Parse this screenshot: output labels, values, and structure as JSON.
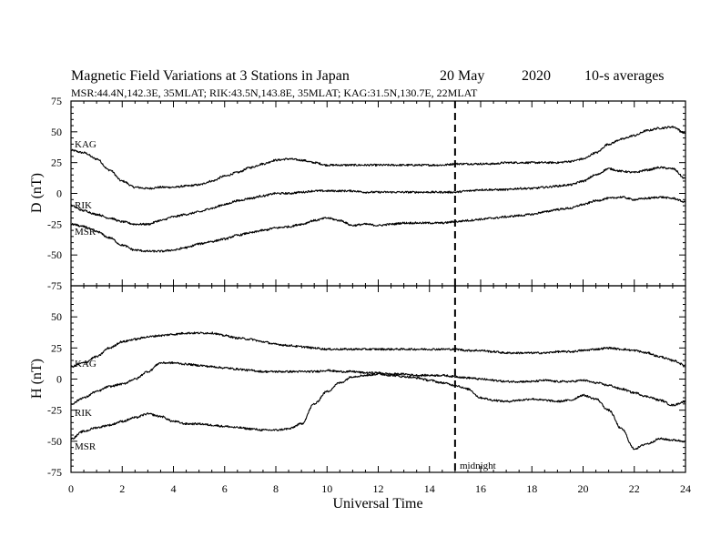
{
  "header": {
    "title_main": "Magnetic Field Variations at 3 Stations in Japan",
    "title_date": "20 May",
    "title_year": "2020",
    "title_avg": "10-s averages",
    "subtitle": "MSR:44.4N,142.3E, 35MLAT;  RIK:43.5N,143.8E, 35MLAT;  KAG:31.5N,130.7E, 22MLAT"
  },
  "annotation": {
    "midnight_label": "midnight",
    "midnight_x": 15
  },
  "chart_data": [
    {
      "type": "line",
      "panel": "D",
      "ylabel": "D (nT)",
      "ylim": [
        -75,
        75
      ],
      "yticks": [
        75,
        50,
        25,
        0,
        -25,
        -50,
        -75
      ],
      "xlim": [
        0,
        24
      ],
      "series": [
        {
          "name": "KAG",
          "color": "#000000",
          "x": [
            0,
            0.5,
            1,
            1.5,
            2,
            2.5,
            3,
            3.5,
            4,
            4.5,
            5,
            5.5,
            6,
            6.5,
            7,
            7.5,
            8,
            8.5,
            9,
            9.5,
            10,
            10.5,
            11,
            11.5,
            12,
            12.5,
            13,
            13.5,
            14,
            14.5,
            15,
            15.5,
            16,
            16.5,
            17,
            17.5,
            18,
            18.5,
            19,
            19.5,
            20,
            20.5,
            21,
            21.5,
            22,
            22.5,
            23,
            23.5,
            24
          ],
          "y": [
            35,
            33,
            28,
            19,
            10,
            5,
            4,
            5,
            5,
            6,
            7,
            10,
            14,
            17,
            21,
            24,
            27,
            28,
            27,
            25,
            23,
            23,
            23,
            23,
            23,
            23,
            23,
            23,
            23,
            23,
            24,
            24,
            24,
            24,
            25,
            25,
            25,
            25,
            25,
            26,
            28,
            33,
            40,
            44,
            47,
            51,
            53,
            54,
            49
          ]
        },
        {
          "name": "RIK",
          "color": "#000000",
          "x": [
            0,
            0.5,
            1,
            1.5,
            2,
            2.5,
            3,
            3.5,
            4,
            4.5,
            5,
            5.5,
            6,
            6.5,
            7,
            7.5,
            8,
            8.5,
            9,
            9.5,
            10,
            10.5,
            11,
            11.5,
            12,
            12.5,
            13,
            13.5,
            14,
            14.5,
            15,
            15.5,
            16,
            16.5,
            17,
            17.5,
            18,
            18.5,
            19,
            19.5,
            20,
            20.5,
            21,
            21.5,
            22,
            22.5,
            23,
            23.5,
            24
          ],
          "y": [
            -10,
            -14,
            -17,
            -20,
            -23,
            -25,
            -25,
            -22,
            -19,
            -17,
            -15,
            -12,
            -9,
            -6,
            -4,
            -2,
            0,
            0,
            1,
            2,
            2,
            2,
            2,
            1,
            1,
            1,
            1,
            1,
            1,
            1,
            1,
            2,
            3,
            3,
            3,
            4,
            4,
            5,
            6,
            7,
            10,
            15,
            20,
            18,
            17,
            19,
            21,
            20,
            12
          ]
        },
        {
          "name": "MSR",
          "color": "#000000",
          "x": [
            0,
            0.5,
            1,
            1.5,
            2,
            2.5,
            3,
            3.5,
            4,
            4.5,
            5,
            5.5,
            6,
            6.5,
            7,
            7.5,
            8,
            8.5,
            9,
            9.5,
            10,
            10.5,
            11,
            11.5,
            12,
            12.5,
            13,
            13.5,
            14,
            14.5,
            15,
            15.5,
            16,
            16.5,
            17,
            17.5,
            18,
            18.5,
            19,
            19.5,
            20,
            20.5,
            21,
            21.5,
            22,
            22.5,
            23,
            23.5,
            24
          ],
          "y": [
            -25,
            -27,
            -31,
            -36,
            -42,
            -46,
            -47,
            -47,
            -46,
            -44,
            -41,
            -39,
            -37,
            -34,
            -32,
            -30,
            -28,
            -27,
            -25,
            -22,
            -20,
            -22,
            -26,
            -25,
            -26,
            -25,
            -24,
            -24,
            -24,
            -24,
            -23,
            -22,
            -21,
            -20,
            -19,
            -18,
            -17,
            -15,
            -13,
            -12,
            -9,
            -6,
            -4,
            -3,
            -5,
            -4,
            -3,
            -4,
            -7
          ]
        }
      ]
    },
    {
      "type": "line",
      "panel": "H",
      "ylabel": "H (nT)",
      "ylim": [
        -75,
        75
      ],
      "yticks": [
        50,
        25,
        0,
        -25,
        -50,
        -75
      ],
      "xlabel": "Universal Time",
      "xlim": [
        0,
        24
      ],
      "xticks": [
        0,
        2,
        4,
        6,
        8,
        10,
        12,
        14,
        16,
        18,
        20,
        22,
        24
      ],
      "series": [
        {
          "name": "KAG",
          "color": "#000000",
          "x": [
            0,
            0.5,
            1,
            1.5,
            2,
            2.5,
            3,
            3.5,
            4,
            4.5,
            5,
            5.5,
            6,
            6.5,
            7,
            7.5,
            8,
            8.5,
            9,
            9.5,
            10,
            10.5,
            11,
            11.5,
            12,
            12.5,
            13,
            13.5,
            14,
            14.5,
            15,
            15.5,
            16,
            16.5,
            17,
            17.5,
            18,
            18.5,
            19,
            19.5,
            20,
            20.5,
            21,
            21.5,
            22,
            22.5,
            23,
            23.5,
            24
          ],
          "y": [
            10,
            13,
            18,
            25,
            30,
            32,
            34,
            35,
            36,
            37,
            37,
            37,
            35,
            33,
            32,
            30,
            28,
            27,
            26,
            25,
            24,
            24,
            24,
            24,
            24,
            24,
            24,
            24,
            24,
            24,
            24,
            23,
            23,
            22,
            21,
            21,
            21,
            21,
            22,
            22,
            23,
            24,
            25,
            24,
            23,
            21,
            18,
            15,
            11
          ]
        },
        {
          "name": "RIK",
          "color": "#000000",
          "x": [
            0,
            0.5,
            1,
            1.5,
            2,
            2.5,
            3,
            3.5,
            4,
            4.5,
            5,
            5.5,
            6,
            6.5,
            7,
            7.5,
            8,
            8.5,
            9,
            9.5,
            10,
            10.5,
            11,
            11.5,
            12,
            12.5,
            13,
            13.5,
            14,
            14.5,
            15,
            15.5,
            16,
            16.5,
            17,
            17.5,
            18,
            18.5,
            19,
            19.5,
            20,
            20.5,
            21,
            21.5,
            22,
            22.5,
            23,
            23.5,
            24
          ],
          "y": [
            -20,
            -15,
            -10,
            -6,
            -4,
            0,
            6,
            13,
            13,
            12,
            11,
            10,
            9,
            8,
            7,
            6,
            6,
            6,
            6,
            6,
            7,
            6,
            6,
            5,
            5,
            4,
            4,
            3,
            3,
            3,
            2,
            1,
            0,
            -1,
            -2,
            -2,
            -2,
            -1,
            -2,
            -2,
            -1,
            -3,
            -5,
            -8,
            -11,
            -14,
            -17,
            -21,
            -18
          ]
        },
        {
          "name": "MSR",
          "color": "#000000",
          "x": [
            0,
            0.5,
            1,
            1.5,
            2,
            2.5,
            3,
            3.5,
            4,
            4.5,
            5,
            5.5,
            6,
            6.5,
            7,
            7.5,
            8,
            8.5,
            9,
            9.5,
            10,
            10.5,
            11,
            11.5,
            12,
            12.5,
            13,
            13.5,
            14,
            14.5,
            15,
            15.5,
            16,
            16.5,
            17,
            17.5,
            18,
            18.5,
            19,
            19.5,
            20,
            20.5,
            21,
            21.5,
            22,
            22.5,
            23,
            23.5,
            24
          ],
          "y": [
            -48,
            -42,
            -39,
            -37,
            -34,
            -31,
            -28,
            -30,
            -34,
            -36,
            -36,
            -37,
            -38,
            -39,
            -40,
            -41,
            -41,
            -40,
            -36,
            -20,
            -10,
            -3,
            2,
            3,
            4,
            3,
            2,
            1,
            -1,
            -3,
            -5,
            -8,
            -15,
            -17,
            -18,
            -17,
            -16,
            -17,
            -18,
            -17,
            -13,
            -16,
            -25,
            -40,
            -56,
            -52,
            -48,
            -49,
            -50
          ]
        }
      ]
    }
  ]
}
